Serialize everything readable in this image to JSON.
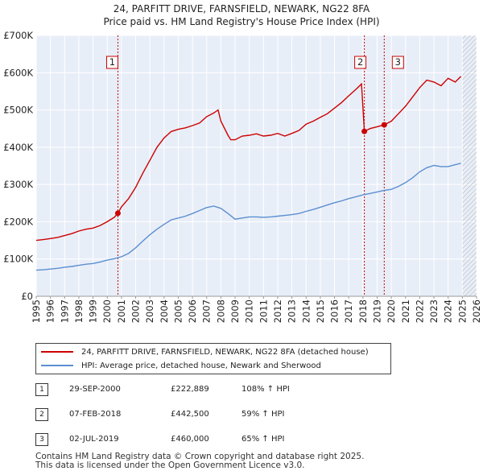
{
  "header": {
    "title": "24, PARFITT DRIVE, FARNSFIELD, NEWARK, NG22 8FA",
    "subtitle": "Price paid vs. HM Land Registry's House Price Index (HPI)"
  },
  "colors": {
    "property": "#cc0000",
    "hpi": "#5b8fd0",
    "shade": "#e8eef8",
    "grid": "#ffffff",
    "hatch": "#b0b0b0",
    "marker": "#cc0000"
  },
  "chart_data": {
    "type": "line",
    "title": "24, PARFITT DRIVE, FARNSFIELD, NEWARK, NG22 8FA",
    "xlim": [
      1995,
      2026
    ],
    "ylim": [
      0,
      700000
    ],
    "x_ticks": [
      1995,
      1996,
      1997,
      1998,
      1999,
      2000,
      2001,
      2002,
      2003,
      2004,
      2005,
      2006,
      2007,
      2008,
      2009,
      2010,
      2011,
      2012,
      2013,
      2014,
      2015,
      2016,
      2017,
      2018,
      2019,
      2020,
      2021,
      2022,
      2023,
      2024,
      2025,
      2026
    ],
    "y_ticks": [
      {
        "value": 0,
        "label": "£0"
      },
      {
        "value": 100000,
        "label": "£100K"
      },
      {
        "value": 200000,
        "label": "£200K"
      },
      {
        "value": 300000,
        "label": "£300K"
      },
      {
        "value": 400000,
        "label": "£400K"
      },
      {
        "value": 500000,
        "label": "£500K"
      },
      {
        "value": 600000,
        "label": "£600K"
      },
      {
        "value": 700000,
        "label": "£700K"
      }
    ],
    "series": [
      {
        "name": "24, PARFITT DRIVE, FARNSFIELD, NEWARK, NG22 8FA (detached house)",
        "x": [
          1995.0,
          1995.5,
          1996.0,
          1996.5,
          1997.0,
          1997.5,
          1998.0,
          1998.5,
          1999.0,
          1999.5,
          2000.0,
          2000.5,
          2000.75,
          2001.0,
          2001.5,
          2002.0,
          2002.5,
          2003.0,
          2003.5,
          2004.0,
          2004.5,
          2005.0,
          2005.5,
          2006.0,
          2006.5,
          2007.0,
          2007.5,
          2007.8,
          2008.0,
          2008.5,
          2008.7,
          2009.0,
          2009.5,
          2010.0,
          2010.5,
          2011.0,
          2011.5,
          2012.0,
          2012.5,
          2013.0,
          2013.5,
          2014.0,
          2014.5,
          2015.0,
          2015.5,
          2016.0,
          2016.5,
          2017.0,
          2017.5,
          2017.9,
          2018.1,
          2018.5,
          2019.0,
          2019.5,
          2020.0,
          2020.5,
          2021.0,
          2021.5,
          2022.0,
          2022.5,
          2023.0,
          2023.5,
          2024.0,
          2024.5,
          2024.9
        ],
        "y": [
          150000,
          152000,
          155000,
          158000,
          163000,
          168000,
          175000,
          180000,
          183000,
          190000,
          200000,
          212000,
          222889,
          240000,
          262000,
          292000,
          330000,
          365000,
          400000,
          425000,
          442000,
          448000,
          452000,
          458000,
          465000,
          482000,
          492000,
          500000,
          470000,
          432000,
          420000,
          420000,
          430000,
          432000,
          436000,
          430000,
          432000,
          437000,
          430000,
          437000,
          445000,
          462000,
          470000,
          480000,
          490000,
          505000,
          520000,
          538000,
          555000,
          570000,
          442500,
          450000,
          455000,
          460000,
          470000,
          490000,
          510000,
          535000,
          560000,
          580000,
          575000,
          565000,
          585000,
          575000,
          590000
        ]
      },
      {
        "name": "HPI: Average price, detached house, Newark and Sherwood",
        "x": [
          1995.0,
          1995.5,
          1996.0,
          1996.5,
          1997.0,
          1997.5,
          1998.0,
          1998.5,
          1999.0,
          1999.5,
          2000.0,
          2000.5,
          2001.0,
          2001.5,
          2002.0,
          2002.5,
          2003.0,
          2003.5,
          2004.0,
          2004.5,
          2005.0,
          2005.5,
          2006.0,
          2006.5,
          2007.0,
          2007.5,
          2008.0,
          2008.5,
          2009.0,
          2009.5,
          2010.0,
          2010.5,
          2011.0,
          2011.5,
          2012.0,
          2012.5,
          2013.0,
          2013.5,
          2014.0,
          2014.5,
          2015.0,
          2015.5,
          2016.0,
          2016.5,
          2017.0,
          2017.5,
          2018.0,
          2018.5,
          2019.0,
          2019.5,
          2020.0,
          2020.5,
          2021.0,
          2021.5,
          2022.0,
          2022.5,
          2023.0,
          2023.5,
          2024.0,
          2024.5,
          2024.9
        ],
        "y": [
          70000,
          71000,
          73000,
          75000,
          78000,
          80000,
          83000,
          86000,
          88000,
          92000,
          97000,
          101000,
          106000,
          115000,
          130000,
          148000,
          165000,
          180000,
          193000,
          205000,
          210000,
          215000,
          222000,
          230000,
          238000,
          242000,
          236000,
          222000,
          207000,
          210000,
          213000,
          213000,
          212000,
          213000,
          215000,
          217000,
          219000,
          222000,
          228000,
          233000,
          239000,
          245000,
          251000,
          256000,
          262000,
          267000,
          272000,
          276000,
          280000,
          284000,
          287000,
          295000,
          305000,
          318000,
          334000,
          345000,
          351000,
          348000,
          348000,
          353000,
          357000
        ]
      }
    ],
    "sale_markers": [
      {
        "label": "1",
        "x": 2000.75,
        "y": 222889
      },
      {
        "label": "2",
        "x": 2018.1,
        "y": 442500
      },
      {
        "label": "3",
        "x": 2019.5,
        "y": 460000
      }
    ],
    "hatch_from": 2025.0
  },
  "legend": {
    "property_label": "24, PARFITT DRIVE, FARNSFIELD, NEWARK, NG22 8FA (detached house)",
    "hpi_label": "HPI: Average price, detached house, Newark and Sherwood"
  },
  "transactions": [
    {
      "num": "1",
      "date": "29-SEP-2000",
      "price": "£222,889",
      "hpi": "108% ↑ HPI"
    },
    {
      "num": "2",
      "date": "07-FEB-2018",
      "price": "£442,500",
      "hpi": "59% ↑ HPI"
    },
    {
      "num": "3",
      "date": "02-JUL-2019",
      "price": "£460,000",
      "hpi": "65% ↑ HPI"
    }
  ],
  "footer": {
    "line1": "Contains HM Land Registry data © Crown copyright and database right 2025.",
    "line2": "This data is licensed under the Open Government Licence v3.0."
  }
}
